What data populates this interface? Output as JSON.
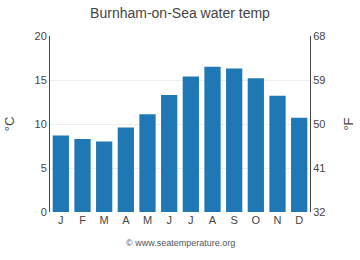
{
  "chart_data": {
    "type": "bar",
    "title": "Burnham-on-Sea water temp",
    "categories": [
      "J",
      "F",
      "M",
      "A",
      "M",
      "J",
      "J",
      "A",
      "S",
      "O",
      "N",
      "D"
    ],
    "values": [
      8.7,
      8.3,
      8.0,
      9.6,
      11.1,
      13.3,
      15.4,
      16.5,
      16.3,
      15.2,
      13.2,
      10.7
    ],
    "ylabel": "°C",
    "y2label": "°F",
    "ylim": [
      0,
      20
    ],
    "yticks": [
      0,
      5,
      10,
      15,
      20
    ],
    "y2lim": [
      32,
      68
    ],
    "y2ticks": [
      32,
      41,
      50,
      59,
      68
    ],
    "grid": true,
    "annotations": [
      "© www.seatemperature.org"
    ]
  }
}
